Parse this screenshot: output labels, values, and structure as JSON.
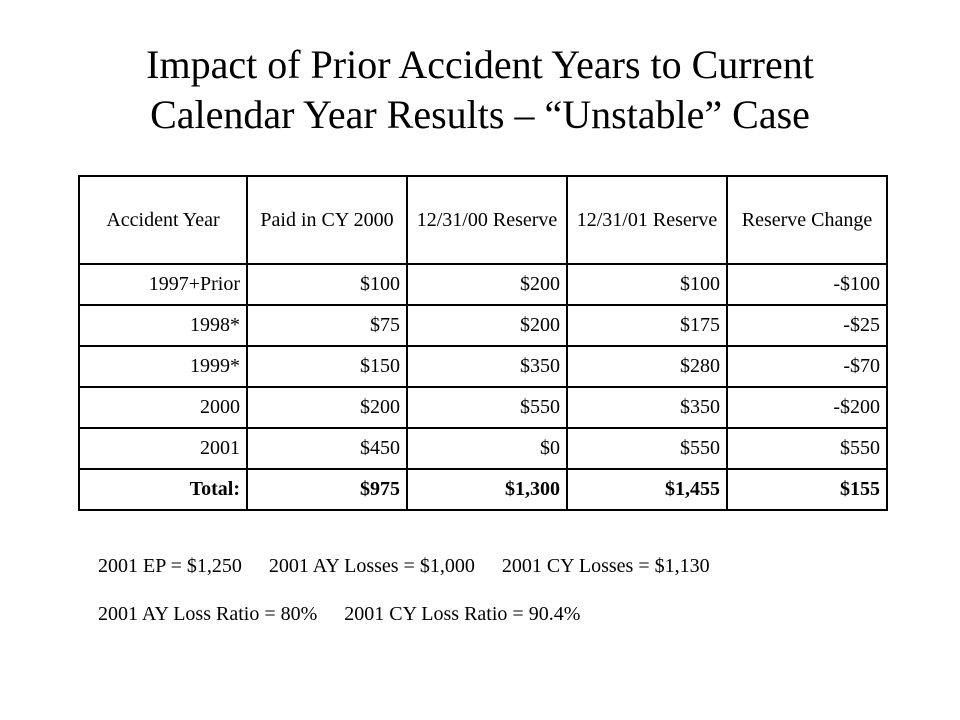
{
  "title": {
    "line1": "Impact of Prior Accident Years to Current",
    "line2": "Calendar Year Results – “Unstable” Case"
  },
  "table": {
    "headers": [
      "Accident Year",
      "Paid in CY 2000",
      "12/31/00 Reserve",
      "12/31/01 Reserve",
      "Reserve Change"
    ],
    "rows": [
      [
        "1997+Prior",
        "$100",
        "$200",
        "$100",
        "-$100"
      ],
      [
        "1998*",
        "$75",
        "$200",
        "$175",
        "-$25"
      ],
      [
        "1999*",
        "$150",
        "$350",
        "$280",
        "-$70"
      ],
      [
        "2000",
        "$200",
        "$550",
        "$350",
        "-$200"
      ],
      [
        "2001",
        "$450",
        "$0",
        "$550",
        "$550"
      ]
    ],
    "total": [
      "Total:",
      "$975",
      "$1,300",
      "$1,455",
      "$155"
    ]
  },
  "notes": {
    "ep": "2001 EP = $1,250",
    "ay_losses": "2001 AY Losses = $1,000",
    "cy_losses": "2001 CY Losses = $1,130",
    "ay_ratio": "2001 AY Loss Ratio = 80%",
    "cy_ratio": "2001 CY Loss Ratio = 90.4%"
  }
}
